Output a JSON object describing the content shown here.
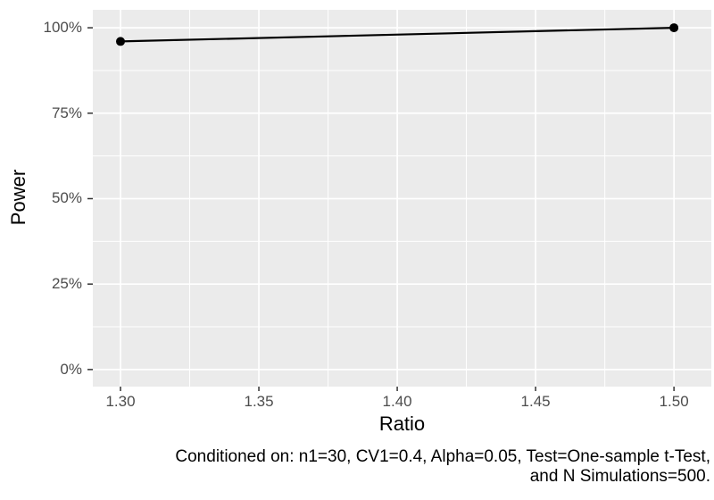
{
  "chart_data": {
    "type": "line",
    "title": "",
    "xlabel": "Ratio",
    "ylabel": "Power",
    "x_ticks": [
      {
        "value": 1.3,
        "label": "1.30"
      },
      {
        "value": 1.35,
        "label": "1.35"
      },
      {
        "value": 1.4,
        "label": "1.40"
      },
      {
        "value": 1.45,
        "label": "1.45"
      },
      {
        "value": 1.5,
        "label": "1.50"
      }
    ],
    "y_ticks": [
      {
        "value": 0.0,
        "label": "0%"
      },
      {
        "value": 0.25,
        "label": "25%"
      },
      {
        "value": 0.5,
        "label": "50%"
      },
      {
        "value": 0.75,
        "label": "75%"
      },
      {
        "value": 1.0,
        "label": "100%"
      }
    ],
    "series": [
      {
        "name": "power-curve",
        "color": "#000000",
        "points": [
          {
            "x": 1.3,
            "y": 0.96
          },
          {
            "x": 1.5,
            "y": 1.0
          }
        ]
      }
    ],
    "xlim": [
      1.29,
      1.5135
    ],
    "ylim": [
      -0.05,
      1.0525
    ],
    "grid": "major-and-minor",
    "legend_position": "none",
    "colors": {
      "panel_background": "#EBEBEB",
      "grid_line": "#FFFFFF",
      "tick_mark": "#333333",
      "tick_text": "#4D4D4D",
      "axis_title_text": "#000000",
      "line": "#000000",
      "point": "#000000"
    }
  },
  "caption": {
    "full_text": "Conditioned on: n1=30, CV1=0.4, Alpha=0.05, Test=One-sample t-Test, and N Simulations=500.",
    "line1": "Conditioned on: n1=30, CV1=0.4, Alpha=0.05, Test=One-sample t-Test,",
    "line2": "and N Simulations=500."
  }
}
